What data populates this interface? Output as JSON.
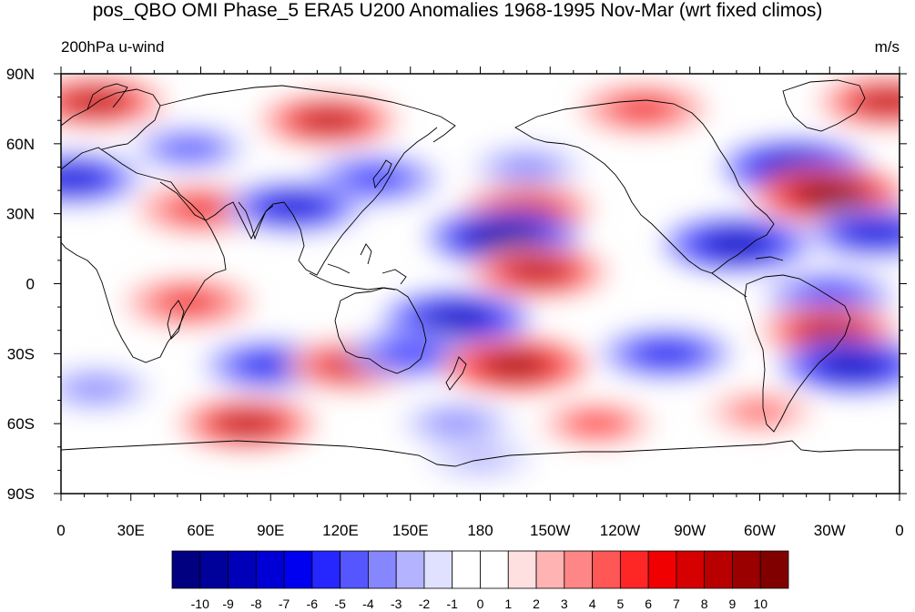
{
  "title": "pos_QBO OMI Phase_5 ERA5 U200 Anomalies 1968-1995 Nov-Mar (wrt fixed climos)",
  "left_label": "200hPa u-wind",
  "right_label": "m/s",
  "chart_data": {
    "type": "heatmap",
    "projection": "cylindrical-equidistant",
    "lon_range": [
      0,
      360
    ],
    "lat_range": [
      -90,
      90
    ],
    "x_ticks": [
      {
        "lon": 0,
        "label": "0"
      },
      {
        "lon": 30,
        "label": "30E"
      },
      {
        "lon": 60,
        "label": "60E"
      },
      {
        "lon": 90,
        "label": "90E"
      },
      {
        "lon": 120,
        "label": "120E"
      },
      {
        "lon": 150,
        "label": "150E"
      },
      {
        "lon": 180,
        "label": "180"
      },
      {
        "lon": 210,
        "label": "150W"
      },
      {
        "lon": 240,
        "label": "120W"
      },
      {
        "lon": 270,
        "label": "90W"
      },
      {
        "lon": 300,
        "label": "60W"
      },
      {
        "lon": 330,
        "label": "30W"
      },
      {
        "lon": 360,
        "label": "0"
      }
    ],
    "y_ticks": [
      {
        "lat": 90,
        "label": "90N"
      },
      {
        "lat": 60,
        "label": "60N"
      },
      {
        "lat": 30,
        "label": "30N"
      },
      {
        "lat": 0,
        "label": "0"
      },
      {
        "lat": -30,
        "label": "30S"
      },
      {
        "lat": -60,
        "label": "60S"
      },
      {
        "lat": -90,
        "label": "90S"
      }
    ],
    "colorbar": {
      "labels": [
        "-10",
        "-9",
        "-8",
        "-7",
        "-6",
        "-5",
        "-4",
        "-3",
        "-2",
        "-1",
        "0",
        "1",
        "2",
        "3",
        "4",
        "5",
        "6",
        "7",
        "8",
        "9",
        "10"
      ],
      "colors": [
        "#000080",
        "#00009a",
        "#0000b8",
        "#0000d6",
        "#0000f0",
        "#2626ff",
        "#5656ff",
        "#8686ff",
        "#b3b3ff",
        "#e0e0ff",
        "#ffffff",
        "#ffffff",
        "#ffe0e0",
        "#ffb3b3",
        "#ff8686",
        "#ff5656",
        "#ff2626",
        "#f00000",
        "#d60000",
        "#b80000",
        "#9a0000",
        "#800000"
      ]
    },
    "anomaly_centers": [
      {
        "lon": 15,
        "lat": 78,
        "value": 8
      },
      {
        "lon": 115,
        "lat": 70,
        "value": 8
      },
      {
        "lon": 250,
        "lat": 75,
        "value": 6
      },
      {
        "lon": 355,
        "lat": 78,
        "value": 8
      },
      {
        "lon": 5,
        "lat": 45,
        "value": -8
      },
      {
        "lon": 55,
        "lat": 58,
        "value": -5
      },
      {
        "lon": 135,
        "lat": 45,
        "value": -6
      },
      {
        "lon": 200,
        "lat": 50,
        "value": -4
      },
      {
        "lon": 315,
        "lat": 50,
        "value": -9
      },
      {
        "lon": 60,
        "lat": 32,
        "value": 6
      },
      {
        "lon": 100,
        "lat": 33,
        "value": -8
      },
      {
        "lon": 200,
        "lat": 32,
        "value": 7
      },
      {
        "lon": 330,
        "lat": 38,
        "value": 10
      },
      {
        "lon": 190,
        "lat": 20,
        "value": -10
      },
      {
        "lon": 290,
        "lat": 17,
        "value": -9
      },
      {
        "lon": 350,
        "lat": 22,
        "value": -8
      },
      {
        "lon": 205,
        "lat": 5,
        "value": 8
      },
      {
        "lon": 330,
        "lat": -5,
        "value": -6
      },
      {
        "lon": 55,
        "lat": -8,
        "value": 6
      },
      {
        "lon": 170,
        "lat": -15,
        "value": -9
      },
      {
        "lon": 90,
        "lat": -35,
        "value": -7
      },
      {
        "lon": 125,
        "lat": -35,
        "value": 7
      },
      {
        "lon": 150,
        "lat": -30,
        "value": -6
      },
      {
        "lon": 195,
        "lat": -35,
        "value": 9
      },
      {
        "lon": 260,
        "lat": -30,
        "value": -7
      },
      {
        "lon": 330,
        "lat": -20,
        "value": 8
      },
      {
        "lon": 340,
        "lat": -35,
        "value": -9
      },
      {
        "lon": 80,
        "lat": -60,
        "value": 8
      },
      {
        "lon": 15,
        "lat": -45,
        "value": -4
      },
      {
        "lon": 170,
        "lat": -60,
        "value": -4
      },
      {
        "lon": 230,
        "lat": -60,
        "value": 5
      },
      {
        "lon": 300,
        "lat": -55,
        "value": 4
      },
      {
        "lon": 180,
        "lat": -75,
        "value": -3
      }
    ]
  }
}
